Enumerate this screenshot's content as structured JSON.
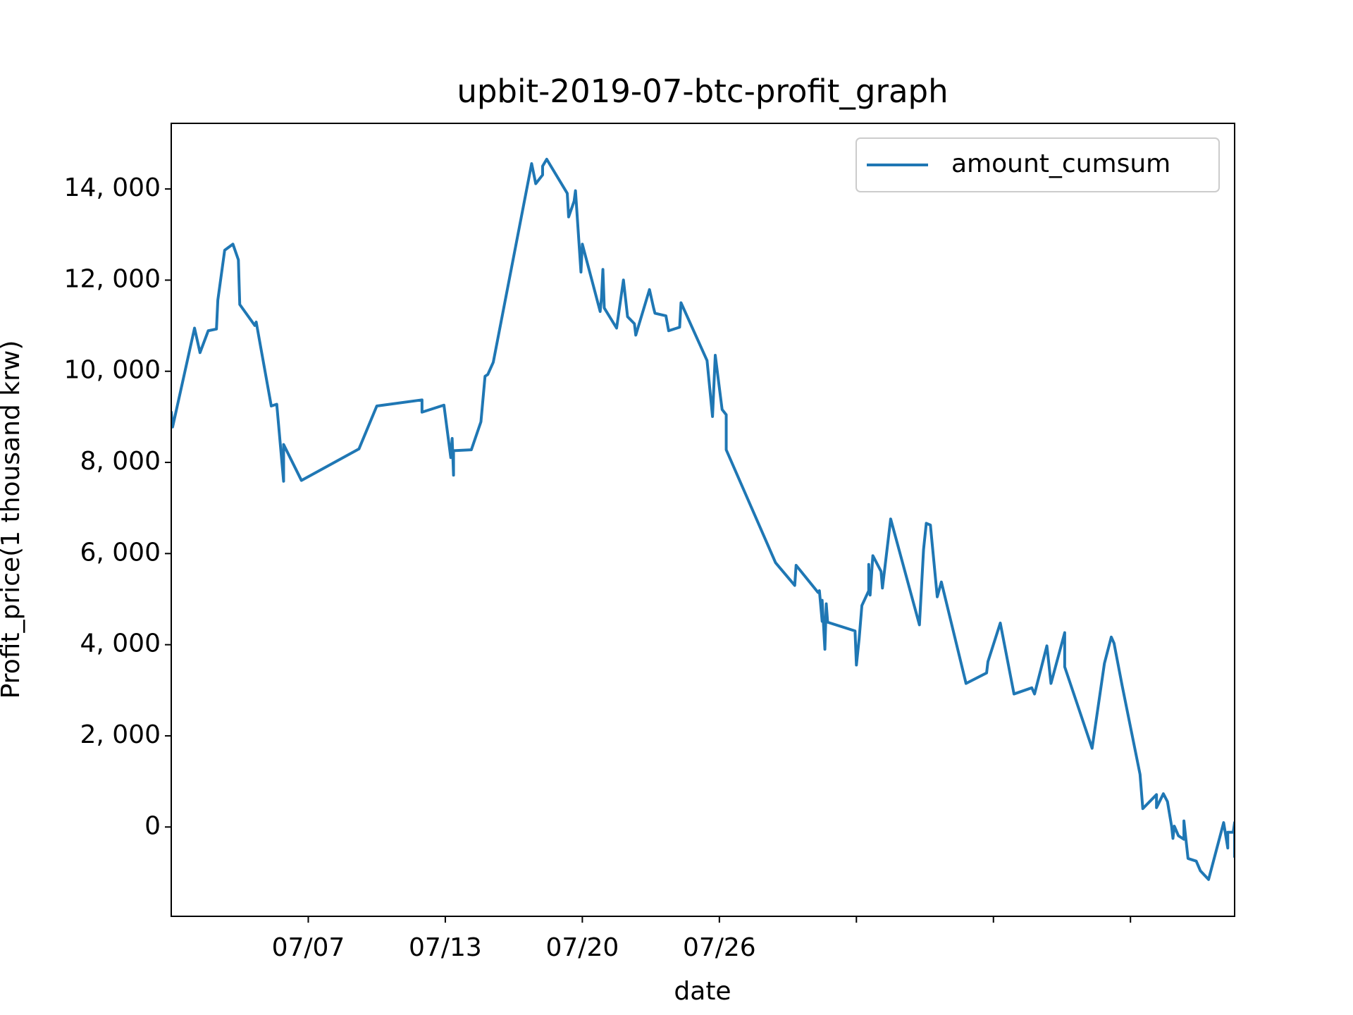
{
  "chart_data": {
    "type": "line",
    "title": "upbit-2019-07-btc-profit_graph",
    "x_label": "date",
    "y_label": "Profit_price(1 thousand krw)",
    "x": [
      0,
      1,
      17,
      21,
      27,
      33,
      34,
      39,
      45,
      49,
      50,
      61,
      62,
      73,
      77,
      82,
      82,
      95,
      137,
      150,
      183,
      183,
      199,
      204,
      205,
      206,
      206,
      219,
      226,
      229,
      231,
      235,
      263,
      266,
      271,
      271,
      274,
      289,
      290,
      294,
      295,
      299,
      300,
      313,
      314,
      315,
      316,
      325,
      330,
      333,
      338,
      339,
      349,
      352,
      353,
      361,
      363,
      371,
      372,
      391,
      395,
      397,
      402,
      405,
      405,
      441,
      455,
      456,
      472,
      473,
      475,
      475,
      477,
      478,
      479,
      499,
      500,
      502,
      504,
      509,
      509,
      510,
      512,
      518,
      519,
      525,
      546,
      549,
      551,
      554,
      559,
      562,
      580,
      595,
      596,
      605,
      615,
      628,
      630,
      639,
      642,
      652,
      652,
      672,
      681,
      686,
      688,
      694,
      707,
      709,
      719,
      719,
      724,
      727,
      730,
      731,
      732,
      735,
      739,
      739,
      742,
      748,
      751,
      757,
      768,
      771,
      771,
      775,
      776,
      776
    ],
    "series": [
      {
        "name": "amount_cumsum",
        "color": "#1f77b4",
        "values": [
          9122,
          8777,
          10947,
          10409,
          10889,
          10927,
          11561,
          12656,
          12790,
          12445,
          11465,
          11004,
          11081,
          9238,
          9276,
          7586,
          8393,
          7605,
          8297,
          9238,
          9372,
          9103,
          9257,
          8105,
          8527,
          7720,
          8258,
          8277,
          8892,
          9891,
          9929,
          10198,
          14557,
          14116,
          14308,
          14500,
          14653,
          13904,
          13386,
          13732,
          13962,
          12176,
          12790,
          11312,
          11619,
          12234,
          11389,
          10947,
          12003,
          11197,
          11043,
          10793,
          11792,
          11389,
          11273,
          11216,
          10889,
          10966,
          11504,
          10236,
          9007,
          10351,
          9161,
          9046,
          8277,
          5800,
          5301,
          5742,
          5147,
          5185,
          4513,
          4974,
          3899,
          4897,
          4494,
          4302,
          3553,
          4129,
          4859,
          5185,
          5762,
          5089,
          5954,
          5608,
          5243,
          6760,
          4436,
          6088,
          6664,
          6626,
          5051,
          5377,
          3150,
          3380,
          3630,
          4475,
          2919,
          3054,
          2919,
          3975,
          3150,
          4264,
          3515,
          1728,
          3591,
          4168,
          4033,
          3092,
          1152,
          403,
          711,
          423,
          730,
          557,
          19,
          -250,
          19,
          -192,
          -269,
          134,
          -691,
          -749,
          -960,
          -1152,
          96,
          -461,
          -115,
          -115,
          96,
          -672
        ]
      }
    ],
    "xlim": [
      0,
      776
    ],
    "xticks": [
      {
        "value": 100,
        "label": "07/07"
      },
      {
        "value": 200,
        "label": "07/13"
      },
      {
        "value": 300,
        "label": "07/20"
      },
      {
        "value": 400,
        "label": "07/26"
      },
      {
        "value": 500,
        "label": null
      },
      {
        "value": 600,
        "label": null
      },
      {
        "value": 700,
        "label": null
      }
    ],
    "ylim": [
      -1960,
      15440
    ],
    "yticks": [
      0,
      {
        "value": 2000,
        "label": "2, 000"
      },
      {
        "value": 4000,
        "label": "4, 000"
      },
      {
        "value": 6000,
        "label": "6, 000"
      },
      {
        "value": 8000,
        "label": "8, 000"
      },
      {
        "value": 10000,
        "label": "10, 000"
      },
      {
        "value": 12000,
        "label": "12, 000"
      },
      {
        "value": 14000,
        "label": "14, 000"
      }
    ],
    "legend": "upper right",
    "grid": false
  }
}
